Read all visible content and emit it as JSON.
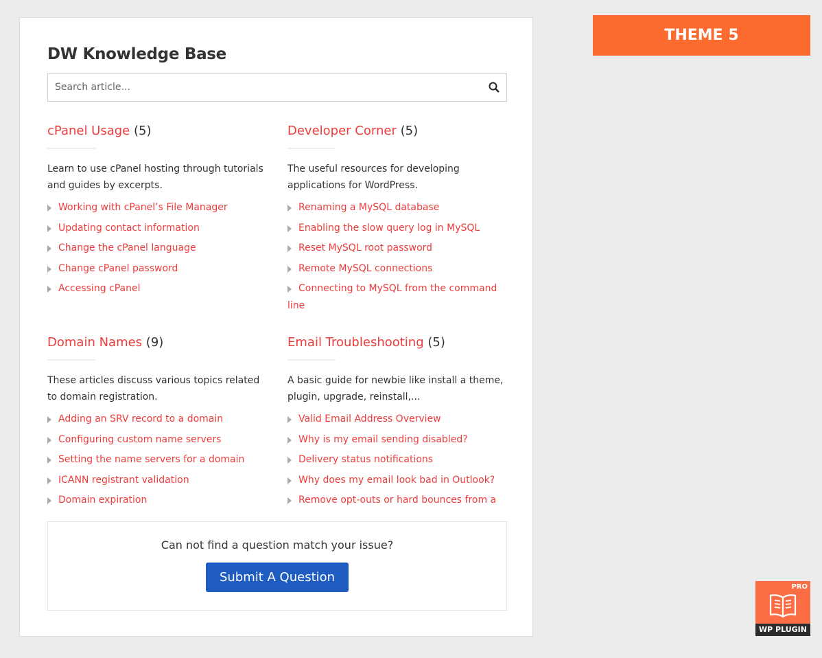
{
  "kb": {
    "title": "DW Knowledge Base",
    "search_placeholder": "Search article...",
    "categories": [
      {
        "name": "cPanel Usage",
        "count": "(5)",
        "desc": "Learn to use cPanel hosting through tutorials and guides by excerpts.",
        "items": [
          "Working with cPanel’s File Manager",
          "Updating contact information",
          "Change the cPanel language",
          "Change cPanel password",
          "Accessing cPanel"
        ]
      },
      {
        "name": "Developer Corner",
        "count": "(5)",
        "desc": "The useful resources for developing applications for WordPress.",
        "items": [
          "Renaming a MySQL database",
          "Enabling the slow query log in MySQL",
          "Reset MySQL root password",
          "Remote MySQL connections",
          "Connecting to MySQL from the command line"
        ]
      },
      {
        "name": "Domain Names",
        "count": "(9)",
        "desc": "These articles discuss various topics related to domain registration.",
        "items": [
          "Adding an SRV record to a domain",
          "Configuring custom name servers",
          "Setting the name servers for a domain",
          "ICANN registrant validation",
          "Domain expiration"
        ]
      },
      {
        "name": "Email Troubleshooting",
        "count": "(5)",
        "desc": "A basic guide for newbie like install a theme, plugin, upgrade, reinstall,...",
        "items": [
          "Valid Email Address Overview",
          "Why is my email sending disabled?",
          "Delivery status notifications",
          "Why does my email look bad in Outlook?",
          "Remove opt-outs or hard bounces from a"
        ]
      }
    ],
    "footer_text": "Can not find a question match your issue?",
    "submit_label": "Submit A Question"
  },
  "theme_label": "THEME 5",
  "badge": {
    "pro": "PRO",
    "label": "WP PLUGIN"
  },
  "colors": {
    "link": "#ee3c3c",
    "theme": "#fb6a2f",
    "button": "#1f5cc2"
  }
}
